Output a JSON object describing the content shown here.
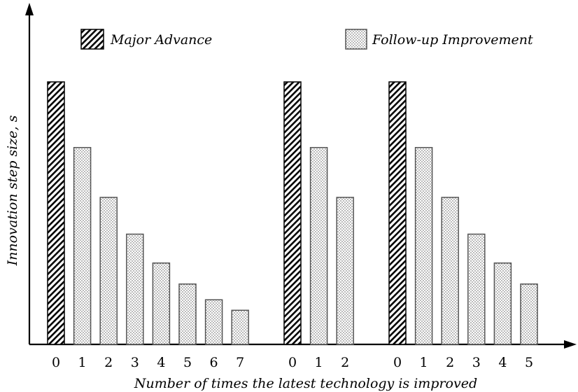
{
  "chart_data": {
    "type": "bar",
    "title": "",
    "xlabel": "Number of times the latest technology is improved",
    "ylabel": "Innovation step size, s",
    "legend": {
      "placement": "top",
      "entries": [
        {
          "name": "Major Advance",
          "pattern": "diagonal-hatch"
        },
        {
          "name": "Follow-up Improvement",
          "pattern": "dotted"
        }
      ]
    },
    "ylim": [
      0,
      1.0
    ],
    "grid": false,
    "groups": [
      {
        "categories": [
          "0",
          "1",
          "2",
          "3",
          "4",
          "5",
          "6",
          "7"
        ],
        "values": [
          1.0,
          0.75,
          0.56,
          0.42,
          0.31,
          0.23,
          0.17,
          0.13
        ],
        "kinds": [
          "Major Advance",
          "Follow-up Improvement",
          "Follow-up Improvement",
          "Follow-up Improvement",
          "Follow-up Improvement",
          "Follow-up Improvement",
          "Follow-up Improvement",
          "Follow-up Improvement"
        ]
      },
      {
        "categories": [
          "0",
          "1",
          "2"
        ],
        "values": [
          1.0,
          0.75,
          0.56
        ],
        "kinds": [
          "Major Advance",
          "Follow-up Improvement",
          "Follow-up Improvement"
        ]
      },
      {
        "categories": [
          "0",
          "1",
          "2",
          "3",
          "4",
          "5"
        ],
        "values": [
          1.0,
          0.75,
          0.56,
          0.42,
          0.31,
          0.23
        ],
        "kinds": [
          "Major Advance",
          "Follow-up Improvement",
          "Follow-up Improvement",
          "Follow-up Improvement",
          "Follow-up Improvement",
          "Follow-up Improvement"
        ]
      }
    ],
    "colors": {
      "bar_outline": "#000000",
      "axis": "#000000",
      "background": "#ffffff"
    }
  }
}
